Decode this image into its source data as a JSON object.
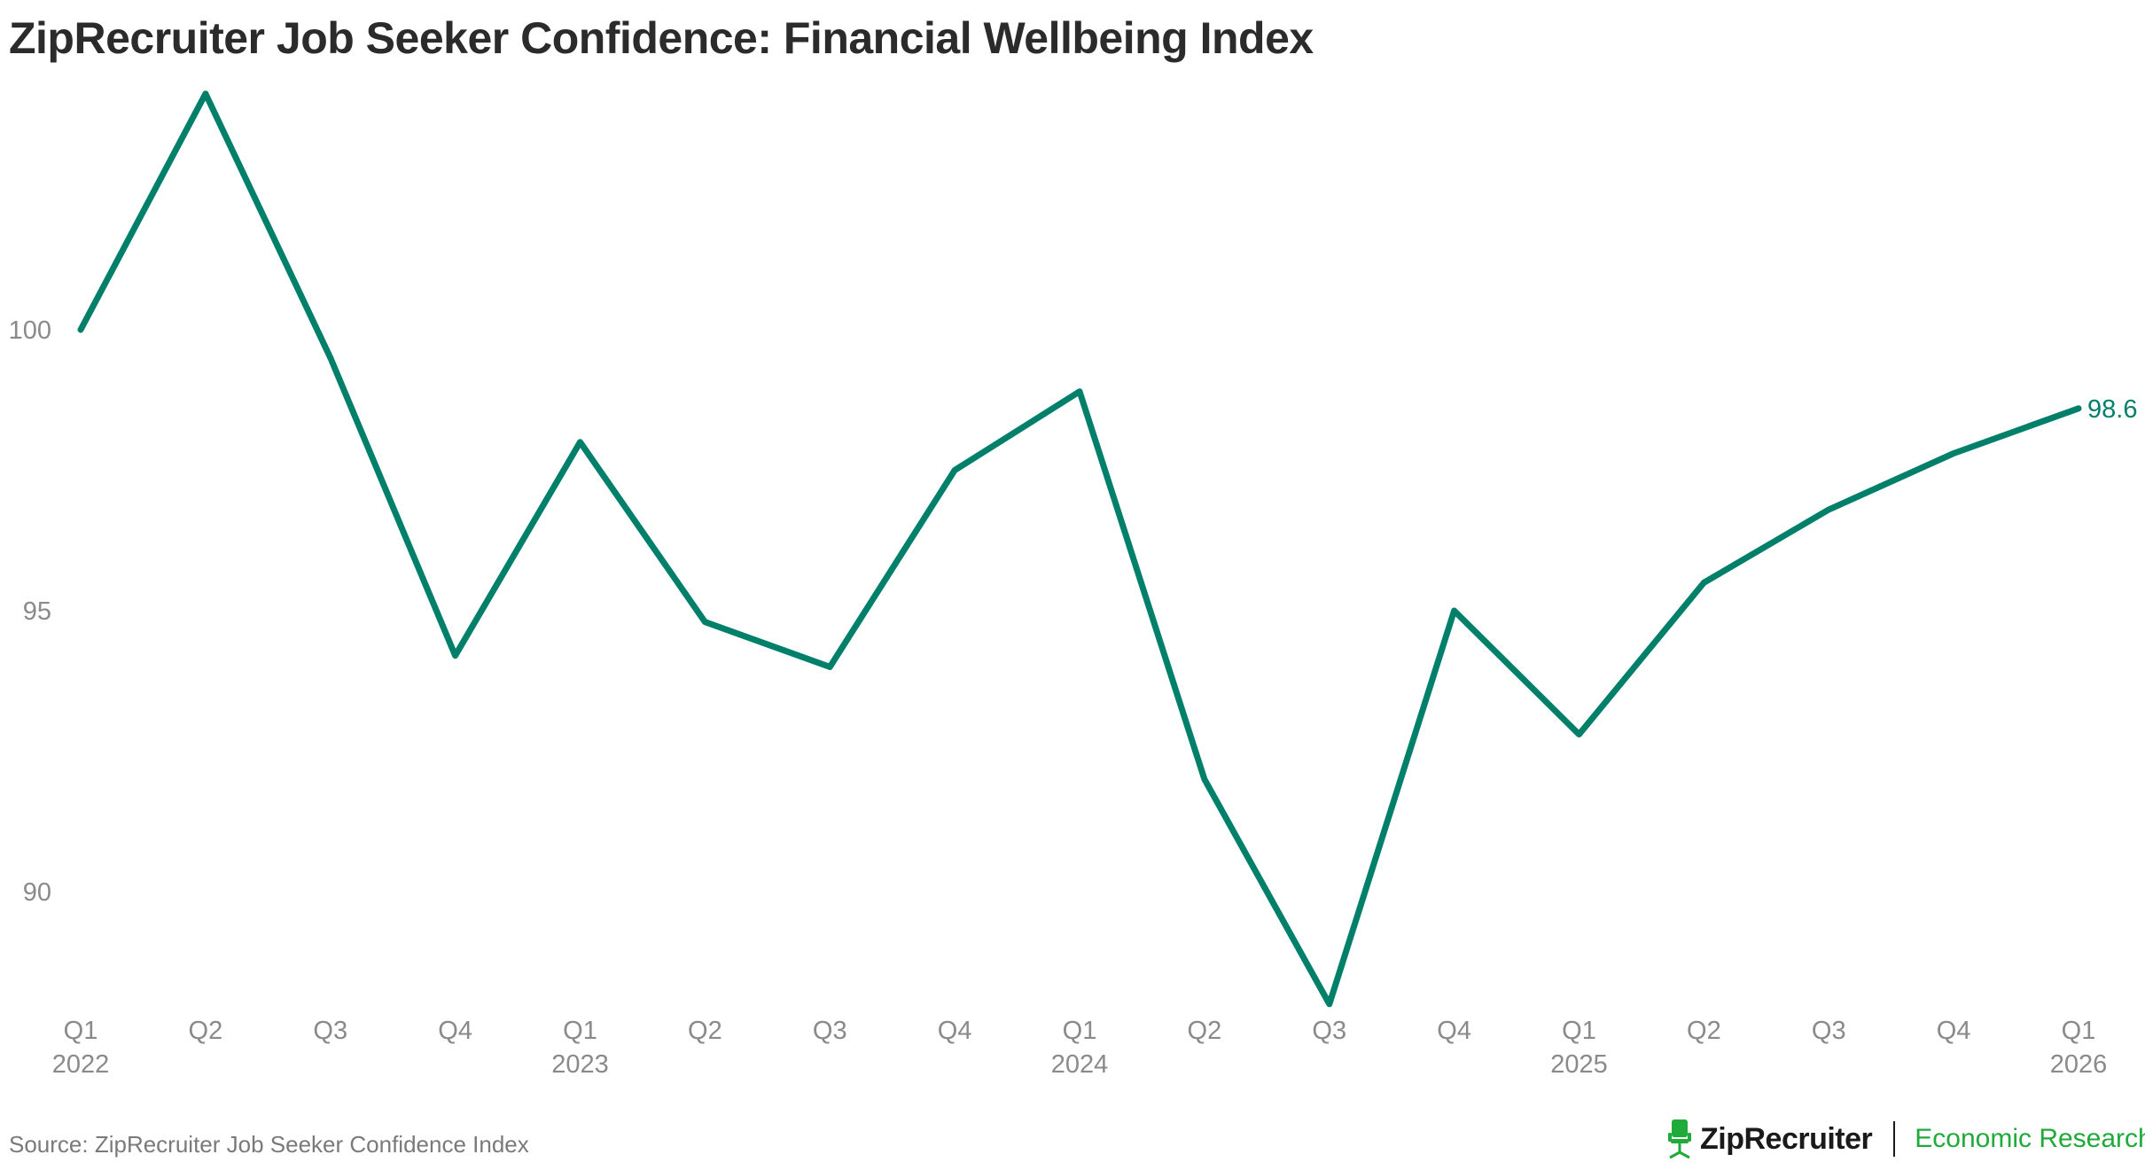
{
  "title": "ZipRecruiter Job Seeker Confidence: Financial Wellbeing Index",
  "source": "Source: ZipRecruiter Job Seeker Confidence Index",
  "brand": {
    "name": "ZipRecruiter",
    "division": "Economic Research"
  },
  "colors": {
    "line": "#00806a",
    "label": "#00806a",
    "tick": "#8a8a8a",
    "title": "#2b2b2b",
    "brand_accent": "#1faa3a"
  },
  "chart_data": {
    "type": "line",
    "title": "ZipRecruiter Job Seeker Confidence: Financial Wellbeing Index",
    "xlabel": "",
    "ylabel": "",
    "grid": false,
    "ylim": [
      87.2,
      105.7
    ],
    "yticks": [
      90,
      95,
      100
    ],
    "categories": [
      "Q1 2022",
      "Q2 2022",
      "Q3 2022",
      "Q4 2022",
      "Q1 2023",
      "Q2 2023",
      "Q3 2023",
      "Q4 2023",
      "Q1 2024",
      "Q2 2024",
      "Q3 2024",
      "Q4 2024",
      "Q1 2025",
      "Q2 2025",
      "Q3 2025",
      "Q4 2025",
      "Q1 2026"
    ],
    "tick_quarters": [
      "Q1",
      "Q2",
      "Q3",
      "Q4",
      "Q1",
      "Q2",
      "Q3",
      "Q4",
      "Q1",
      "Q2",
      "Q3",
      "Q4",
      "Q1",
      "Q2",
      "Q3",
      "Q4",
      "Q1"
    ],
    "tick_years": [
      "2022",
      "",
      "",
      "",
      "2023",
      "",
      "",
      "",
      "2024",
      "",
      "",
      "",
      "2025",
      "",
      "",
      "",
      "2026"
    ],
    "series": [
      {
        "name": "Financial Wellbeing Index",
        "values": [
          100.0,
          104.2,
          99.5,
          94.2,
          98.0,
          94.8,
          94.0,
          97.5,
          98.9,
          92.0,
          88.0,
          95.0,
          92.8,
          95.5,
          96.8,
          97.8,
          98.6
        ]
      }
    ],
    "end_label": "98.6"
  }
}
